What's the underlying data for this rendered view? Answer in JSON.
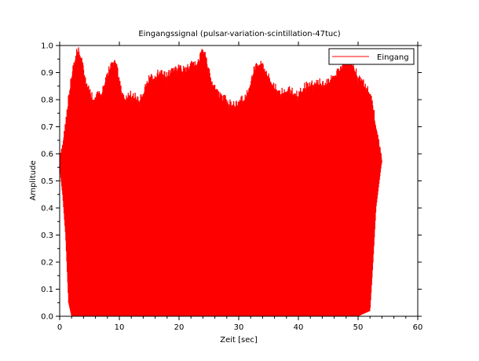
{
  "chart_data": {
    "type": "area",
    "title": "Eingangssignal (pulsar-variation-scintillation-47tuc)",
    "xlabel": "Zeit [sec]",
    "ylabel": "Amplitude",
    "xlim": [
      0,
      60
    ],
    "ylim": [
      0,
      1
    ],
    "x_ticks": [
      0,
      10,
      20,
      30,
      40,
      50,
      60
    ],
    "y_ticks": [
      0.0,
      0.1,
      0.2,
      0.3,
      0.4,
      0.5,
      0.6,
      0.7,
      0.8,
      0.9,
      1.0
    ],
    "x_tick_labels": [
      "0",
      "10",
      "20",
      "30",
      "40",
      "50",
      "60"
    ],
    "y_tick_labels": [
      "0.0",
      "0.1",
      "0.2",
      "0.3",
      "0.4",
      "0.5",
      "0.6",
      "0.7",
      "0.8",
      "0.9",
      "1.0"
    ],
    "grid": false,
    "legend_position": "top-right",
    "series": [
      {
        "name": "Eingang",
        "color": "#ff0000",
        "upper_envelope": {
          "x": [
            0,
            0.5,
            1,
            1.5,
            2,
            2.5,
            3,
            3.5,
            4,
            4.5,
            5,
            5.5,
            6,
            7,
            8,
            8.5,
            9,
            9.5,
            10,
            10.5,
            11,
            12,
            13,
            13.5,
            14,
            14.5,
            15,
            16,
            17,
            18,
            19,
            20,
            21,
            22,
            23,
            23.5,
            24,
            24.5,
            25,
            25.5,
            26,
            27,
            28,
            29,
            30,
            31,
            32,
            32.5,
            33,
            33.5,
            34,
            34.5,
            35,
            36,
            37,
            38,
            39,
            40,
            41,
            42,
            43,
            44,
            45,
            46,
            47,
            48,
            49,
            50,
            51,
            52,
            53,
            53.5,
            54
          ],
          "y": [
            0.58,
            0.62,
            0.7,
            0.8,
            0.88,
            0.94,
            0.98,
            0.96,
            0.9,
            0.85,
            0.82,
            0.8,
            0.8,
            0.82,
            0.88,
            0.92,
            0.94,
            0.92,
            0.86,
            0.82,
            0.8,
            0.81,
            0.8,
            0.79,
            0.82,
            0.85,
            0.87,
            0.88,
            0.9,
            0.88,
            0.9,
            0.91,
            0.9,
            0.92,
            0.93,
            0.95,
            0.98,
            0.95,
            0.9,
            0.86,
            0.83,
            0.8,
            0.79,
            0.77,
            0.78,
            0.8,
            0.85,
            0.9,
            0.92,
            0.93,
            0.92,
            0.9,
            0.88,
            0.84,
            0.82,
            0.83,
            0.82,
            0.81,
            0.84,
            0.85,
            0.86,
            0.85,
            0.86,
            0.88,
            0.9,
            0.95,
            0.93,
            0.88,
            0.85,
            0.82,
            0.7,
            0.64,
            0.58
          ]
        },
        "lower_envelope": {
          "x": [
            0,
            0.5,
            1,
            1.5,
            2,
            3,
            10,
            20,
            30,
            40,
            50,
            52,
            52.5,
            53,
            54
          ],
          "y": [
            0.55,
            0.45,
            0.3,
            0.05,
            0.0,
            0.0,
            0.0,
            0.0,
            0.0,
            0.0,
            0.0,
            0.02,
            0.2,
            0.4,
            0.58
          ]
        }
      }
    ]
  }
}
